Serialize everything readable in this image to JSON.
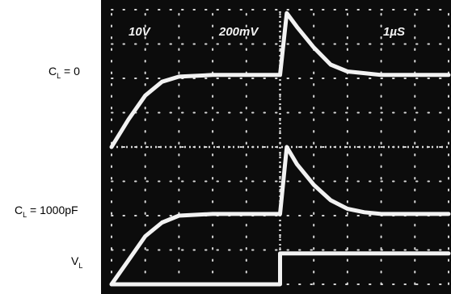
{
  "labels": {
    "cl_zero": {
      "main": "C",
      "sub": "L",
      "rest": " = 0"
    },
    "cl_1000": {
      "main": "C",
      "sub": "L",
      "rest": " = 1000pF"
    },
    "vl": {
      "main": "V",
      "sub": "L",
      "rest": ""
    }
  },
  "chart_data": {
    "type": "line",
    "scale_labels": [
      "10V",
      "200mV",
      "1µS"
    ],
    "xlim": [
      0,
      10
    ],
    "ylim": [
      -4,
      4
    ],
    "grid": true,
    "colors": {
      "background": "#0c0c0c",
      "trace": "#f2f2f2",
      "grid": "#d9d9d9",
      "page": "#ffffff"
    },
    "series": [
      {
        "x": [
          0,
          0.5,
          1,
          1.5,
          2,
          3,
          4,
          5,
          5.2,
          5.5,
          6,
          6.5,
          7,
          7.5,
          8,
          9,
          10
        ],
        "y": [
          0,
          0.8,
          1.5,
          1.9,
          2.05,
          2.1,
          2.1,
          2.1,
          3.9,
          3.5,
          2.9,
          2.4,
          2.2,
          2.15,
          2.1,
          2.1,
          2.1
        ]
      },
      {
        "x": [
          0,
          0.5,
          1,
          1.5,
          2,
          3,
          4,
          5,
          5.2,
          5.5,
          6,
          6.5,
          7,
          7.5,
          8,
          9,
          10
        ],
        "y": [
          -4,
          -3.3,
          -2.6,
          -2.2,
          -2,
          -1.95,
          -1.95,
          -1.95,
          0,
          -0.5,
          -1.1,
          -1.55,
          -1.8,
          -1.9,
          -1.95,
          -1.95,
          -1.95
        ]
      },
      {
        "x": [
          0,
          5,
          5,
          10
        ],
        "y": [
          -4,
          -4,
          -3.1,
          -3.1
        ]
      }
    ]
  }
}
